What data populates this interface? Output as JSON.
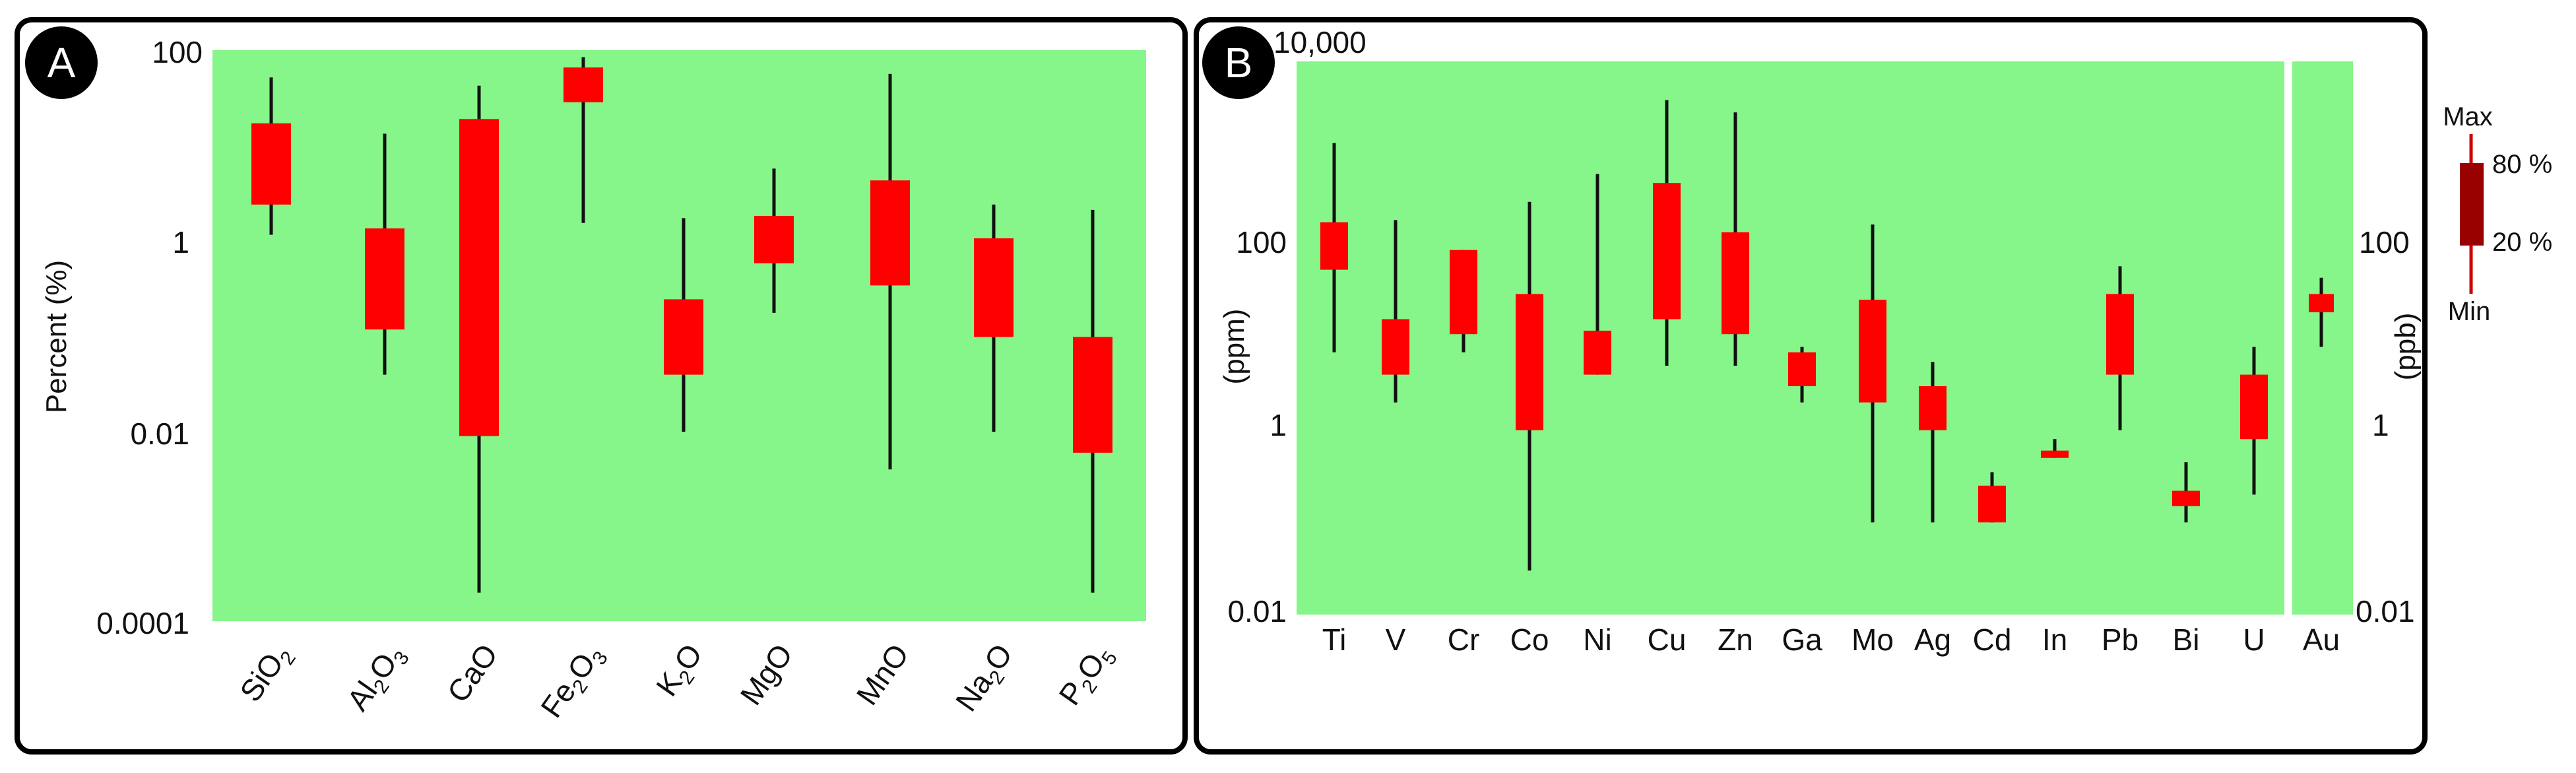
{
  "panel_a": {
    "letter": "A",
    "y_ticks": [
      "100",
      "1",
      "0.01",
      "0.0001"
    ],
    "ylabel": "Percent (%)"
  },
  "panel_b": {
    "letter": "B",
    "y_ticks_left": [
      "10,000",
      "100",
      "1",
      "0.01"
    ],
    "y_ticks_right": [
      "100",
      "1",
      "0.01"
    ],
    "ylabel_left": "(ppm)",
    "ylabel_right": "(ppb)"
  },
  "legend": {
    "max": "Max",
    "min": "Min",
    "p80": "80 %",
    "p20": "20 %"
  },
  "colors": {
    "plot_bg": "#86f58a",
    "box": "#ff0000",
    "whisker": "#111111",
    "legend_box": "#990000",
    "legend_whisker": "#cc0000"
  },
  "chart_data": [
    {
      "type": "box",
      "panel": "A",
      "scale": "log",
      "ylabel": "Percent (%)",
      "ylim": [
        0.0001,
        100
      ],
      "categories": [
        {
          "label": "SiO2",
          "base": "SiO",
          "sub": "2"
        },
        {
          "label": "Al2O3",
          "parts": [
            [
              "Al",
              ""
            ],
            [
              "2",
              "sub"
            ],
            [
              "O",
              ""
            ],
            [
              "3",
              "sub"
            ]
          ]
        },
        {
          "label": "CaO",
          "base": "CaO"
        },
        {
          "label": "Fe2O3",
          "parts": [
            [
              "Fe",
              ""
            ],
            [
              "2",
              "sub"
            ],
            [
              "O",
              ""
            ],
            [
              "3",
              "sub"
            ]
          ]
        },
        {
          "label": "K2O",
          "parts": [
            [
              "K",
              ""
            ],
            [
              "2",
              "sub"
            ],
            [
              "O",
              ""
            ]
          ]
        },
        {
          "label": "MgO",
          "base": "MgO"
        },
        {
          "label": "MnO",
          "base": "MnO"
        },
        {
          "label": "Na2O",
          "parts": [
            [
              "Na",
              ""
            ],
            [
              "2",
              "sub"
            ],
            [
              "O",
              ""
            ]
          ]
        },
        {
          "label": "P2O5",
          "parts": [
            [
              "P",
              ""
            ],
            [
              "2",
              "sub"
            ],
            [
              "O",
              ""
            ],
            [
              "5",
              "sub"
            ]
          ]
        }
      ],
      "min": [
        1.2,
        0.04,
        0.0002,
        1.6,
        0.01,
        0.18,
        0.004,
        0.01,
        0.0002
      ],
      "p20": [
        2.5,
        0.12,
        0.009,
        30,
        0.04,
        0.6,
        0.35,
        0.1,
        0.006
      ],
      "p80": [
        18,
        1.4,
        20,
        70,
        0.25,
        1.9,
        4.5,
        1.1,
        0.1
      ],
      "max": [
        55,
        14,
        45,
        90,
        1.8,
        6,
        60,
        2.5,
        2.2
      ]
    },
    {
      "type": "box",
      "panel": "B",
      "scale": "log",
      "ylabel": "(ppm)",
      "ylim": [
        0.01,
        10000
      ],
      "categories": [
        "Ti",
        "V",
        "Cr",
        "Co",
        "Ni",
        "Cu",
        "Zn",
        "Ga",
        "Mo",
        "Ag",
        "Cd",
        "In",
        "Pb",
        "Bi",
        "U"
      ],
      "min": [
        7,
        2,
        7,
        0.03,
        4,
        5,
        5,
        2,
        0.1,
        0.1,
        0.1,
        0.7,
        1,
        0.1,
        0.2
      ],
      "p20": [
        55,
        4,
        11,
        1,
        4,
        16,
        11,
        3,
        2,
        1,
        0.1,
        0.5,
        4,
        0.15,
        0.8
      ],
      "p80": [
        180,
        16,
        90,
        30,
        12,
        480,
        140,
        7,
        26,
        3,
        0.25,
        0.6,
        30,
        0.22,
        4
      ],
      "max": [
        1300,
        190,
        90,
        300,
        600,
        3800,
        2800,
        8,
        170,
        5.5,
        0.35,
        0.8,
        60,
        0.45,
        8
      ]
    },
    {
      "type": "box",
      "panel": "B",
      "scale": "log",
      "ylabel": "(ppb)",
      "ylim": [
        0.01,
        10000
      ],
      "categories": [
        "Au"
      ],
      "min": [
        8
      ],
      "p20": [
        19
      ],
      "p80": [
        30
      ],
      "max": [
        45
      ]
    }
  ]
}
